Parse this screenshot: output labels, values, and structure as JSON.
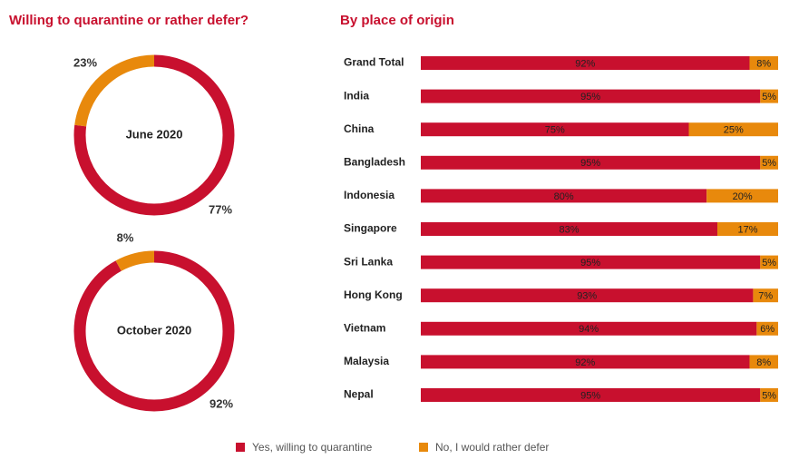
{
  "colors": {
    "yes": "#c8102e",
    "no": "#e8890c",
    "text": "#222222"
  },
  "chart_data": [
    {
      "type": "pie",
      "variant": "donut",
      "title": "Willing to quarantine or rather defer?",
      "donuts": [
        {
          "center_label": "June 2020",
          "slices": [
            {
              "name": "Yes, willing to quarantine",
              "value": 77,
              "label": "77%"
            },
            {
              "name": "No, I would rather defer",
              "value": 23,
              "label": "23%"
            }
          ]
        },
        {
          "center_label": "October 2020",
          "slices": [
            {
              "name": "Yes, willing to quarantine",
              "value": 92,
              "label": "92%"
            },
            {
              "name": "No, I would rather defer",
              "value": 8,
              "label": "8%"
            }
          ]
        }
      ]
    },
    {
      "type": "bar",
      "orientation": "horizontal",
      "stacked": true,
      "title": "By place of origin",
      "xlim": [
        0,
        100
      ],
      "categories": [
        "Grand Total",
        "India",
        "China",
        "Bangladesh",
        "Indonesia",
        "Singapore",
        "Sri Lanka",
        "Hong Kong",
        "Vietnam",
        "Malaysia",
        "Nepal"
      ],
      "series": [
        {
          "name": "Yes, willing to quarantine",
          "values": [
            92,
            95,
            75,
            95,
            80,
            83,
            95,
            93,
            94,
            92,
            95
          ],
          "labels": [
            "92%",
            "95%",
            "75%",
            "95%",
            "80%",
            "83%",
            "95%",
            "93%",
            "94%",
            "92%",
            "95%"
          ]
        },
        {
          "name": "No, I would rather defer",
          "values": [
            8,
            5,
            25,
            5,
            20,
            17,
            5,
            7,
            6,
            8,
            5
          ],
          "labels": [
            "8%",
            "5%",
            "25%",
            "5%",
            "20%",
            "17%",
            "5%",
            "7%",
            "6%",
            "8%",
            "5%"
          ]
        }
      ],
      "legend": {
        "position": "bottom",
        "items": [
          "Yes, willing to quarantine",
          "No, I would rather defer"
        ]
      }
    }
  ]
}
